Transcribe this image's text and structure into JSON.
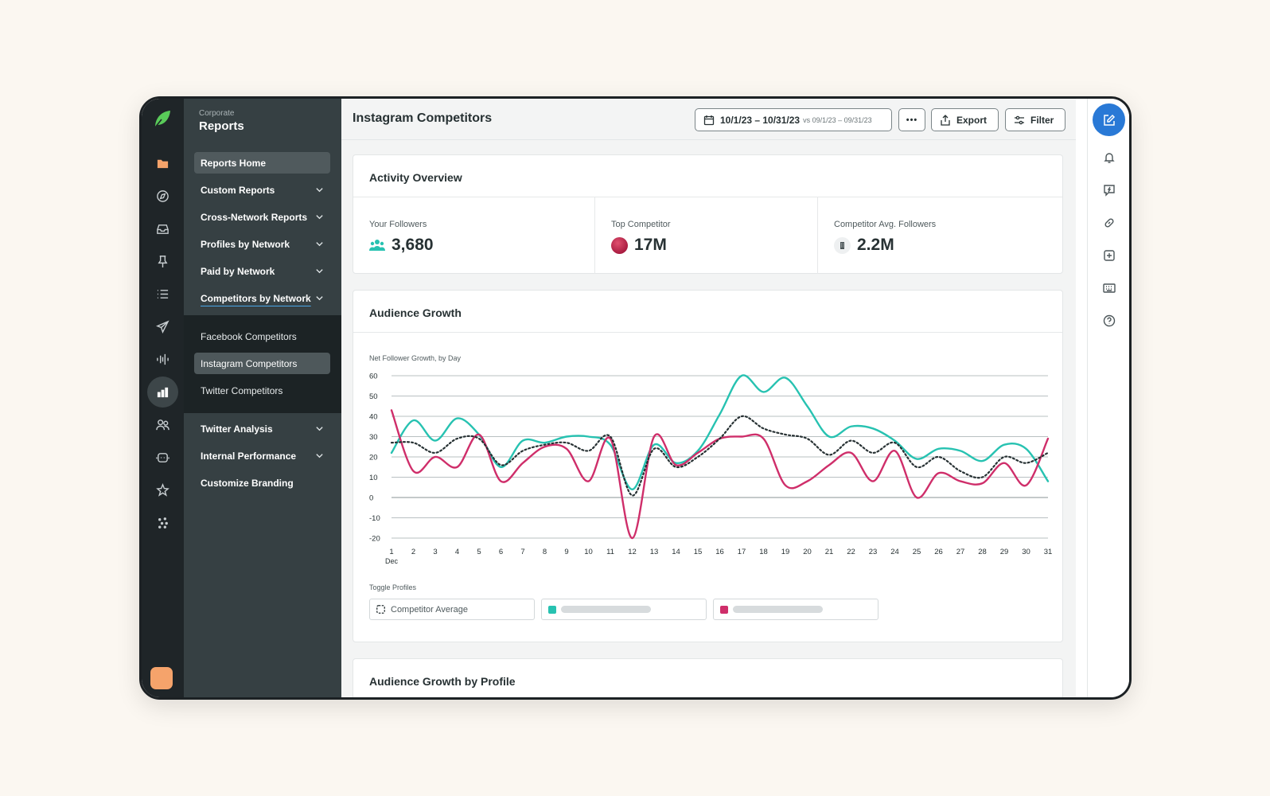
{
  "colors": {
    "background": "#fbf7f1",
    "rail": "#1f2528",
    "nav": "#364043",
    "nav_sub": "#1c2325",
    "accent_blue": "#2979d6",
    "series_teal": "#27c2b1",
    "series_pink": "#cf2e6a",
    "series_avg": "#273133"
  },
  "rail": {
    "icons": [
      "sprout-logo-icon",
      "folder-icon",
      "compass-icon",
      "inbox-icon",
      "pin-icon",
      "list-icon",
      "send-icon",
      "listening-icon",
      "reports-icon",
      "people-icon",
      "bot-icon",
      "star-icon",
      "apps-icon"
    ]
  },
  "nav": {
    "eyebrow": "Corporate",
    "title": "Reports",
    "items": [
      {
        "label": "Reports Home"
      },
      {
        "label": "Custom Reports"
      },
      {
        "label": "Cross-Network Reports"
      },
      {
        "label": "Profiles by Network"
      },
      {
        "label": "Paid by Network"
      },
      {
        "label": "Competitors by Network"
      }
    ],
    "sub_items": [
      {
        "label": "Facebook Competitors"
      },
      {
        "label": "Instagram Competitors"
      },
      {
        "label": "Twitter Competitors"
      }
    ],
    "bottom_items": [
      {
        "label": "Twitter Analysis"
      },
      {
        "label": "Internal Performance"
      },
      {
        "label": "Customize Branding"
      }
    ]
  },
  "header": {
    "title": "Instagram Competitors",
    "date_range": "10/1/23 – 10/31/23",
    "compare_range": "vs 09/1/23 – 09/31/23",
    "more_label": "•••",
    "export_label": "Export",
    "filter_label": "Filter"
  },
  "activity": {
    "title": "Activity Overview",
    "stats": [
      {
        "label": "Your Followers",
        "value": "3,680",
        "icon": "people-icon"
      },
      {
        "label": "Top Competitor",
        "value": "17M",
        "icon": "avatar-icon"
      },
      {
        "label": "Competitor Avg. Followers",
        "value": "2.2M",
        "icon": "building-icon"
      }
    ]
  },
  "growth": {
    "title": "Audience Growth",
    "subtitle": "Net Follower Growth, by Day",
    "toggle_label": "Toggle Profiles",
    "toggle_avg": "Competitor Average"
  },
  "by_profile": {
    "title": "Audience Growth by Profile"
  },
  "chart_data": {
    "type": "line",
    "x": [
      1,
      2,
      3,
      4,
      5,
      6,
      7,
      8,
      9,
      10,
      11,
      12,
      13,
      14,
      15,
      16,
      17,
      18,
      19,
      20,
      21,
      22,
      23,
      24,
      25,
      26,
      27,
      28,
      29,
      30,
      31
    ],
    "x_sublabel": "Dec",
    "ylim": [
      -20,
      60
    ],
    "yticks": [
      60,
      50,
      40,
      30,
      20,
      10,
      0,
      -10,
      -20
    ],
    "grid": true,
    "series": [
      {
        "color": "#27c2b1",
        "style": "solid",
        "values": [
          22,
          38,
          28,
          39,
          31,
          15,
          28,
          27,
          30,
          30,
          26,
          4,
          26,
          17,
          23,
          41,
          60,
          52,
          59,
          45,
          30,
          35,
          34,
          28,
          19,
          24,
          23,
          18,
          26,
          24,
          8
        ]
      },
      {
        "color": "#cf2e6a",
        "style": "solid",
        "values": [
          43,
          13,
          20,
          15,
          31,
          8,
          17,
          25,
          24,
          8,
          29,
          -20,
          30,
          16,
          22,
          29,
          30,
          29,
          6,
          8,
          16,
          22,
          8,
          23,
          0,
          12,
          8,
          7,
          17,
          6,
          29
        ]
      },
      {
        "color": "#273133",
        "style": "dotted",
        "values": [
          27,
          27,
          22,
          29,
          29,
          16,
          23,
          26,
          27,
          23,
          30,
          1,
          24,
          15,
          20,
          29,
          40,
          34,
          31,
          29,
          21,
          28,
          22,
          27,
          15,
          20,
          13,
          10,
          20,
          17,
          22
        ]
      }
    ]
  }
}
